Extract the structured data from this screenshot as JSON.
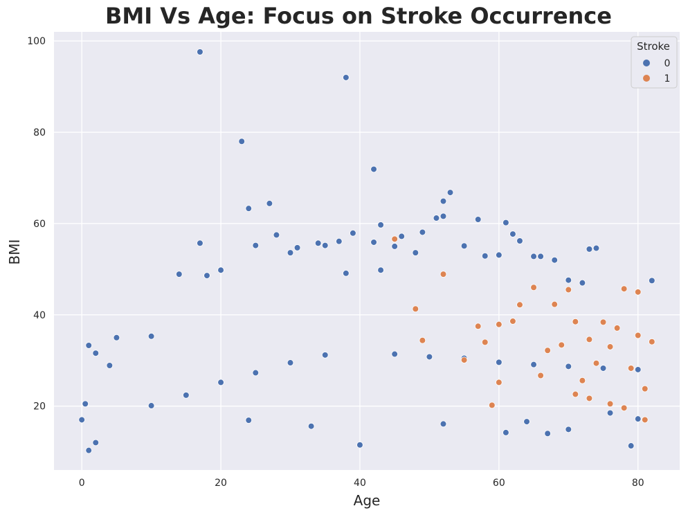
{
  "chart_data": {
    "type": "scatter",
    "title": "BMI Vs Age: Focus on Stroke Occurrence",
    "xlabel": "Age",
    "ylabel": "BMI",
    "xlim": [
      -4,
      86
    ],
    "ylim": [
      6,
      102
    ],
    "xticks": [
      0,
      20,
      40,
      60,
      80
    ],
    "yticks": [
      20,
      40,
      60,
      80,
      100
    ],
    "grid": true,
    "legend": {
      "title": "Stroke",
      "placement": "top-right",
      "entries": [
        {
          "label": "0",
          "color": "#4c72b0"
        },
        {
          "label": "1",
          "color": "#dd8452"
        }
      ]
    },
    "series": [
      {
        "name": "0",
        "color": "#4c72b0",
        "points": [
          [
            17,
            97.6
          ],
          [
            38,
            92
          ],
          [
            23,
            78
          ],
          [
            42,
            71.9
          ],
          [
            53,
            66.8
          ],
          [
            52,
            64.9
          ],
          [
            27,
            64.4
          ],
          [
            24,
            63.3
          ],
          [
            52,
            61.6
          ],
          [
            51,
            61.2
          ],
          [
            57,
            60.9
          ],
          [
            61,
            60.2
          ],
          [
            43,
            59.7
          ],
          [
            62,
            57.7
          ],
          [
            63,
            56.2
          ],
          [
            49,
            58.1
          ],
          [
            39,
            57.9
          ],
          [
            28,
            57.5
          ],
          [
            46,
            57.2
          ],
          [
            37,
            56.1
          ],
          [
            17,
            55.7
          ],
          [
            34,
            55.7
          ],
          [
            25,
            55.2
          ],
          [
            55,
            55.1
          ],
          [
            45,
            55
          ],
          [
            42,
            55.9
          ],
          [
            73,
            54.4
          ],
          [
            74,
            54.6
          ],
          [
            31,
            54.7
          ],
          [
            30,
            53.6
          ],
          [
            35,
            55.2
          ],
          [
            60,
            53.1
          ],
          [
            58,
            52.9
          ],
          [
            48,
            53.6
          ],
          [
            65,
            52.8
          ],
          [
            66,
            52.8
          ],
          [
            68,
            52
          ],
          [
            20,
            49.8
          ],
          [
            14,
            48.9
          ],
          [
            18,
            48.6
          ],
          [
            38,
            49.1
          ],
          [
            43,
            49.8
          ],
          [
            82,
            47.5
          ],
          [
            72,
            47
          ],
          [
            70,
            47.6
          ],
          [
            10,
            35.3
          ],
          [
            5,
            35
          ],
          [
            1,
            33.3
          ],
          [
            2,
            31.6
          ],
          [
            4,
            28.9
          ],
          [
            0,
            17
          ],
          [
            0.5,
            20.5
          ],
          [
            1,
            10.3
          ],
          [
            2,
            12
          ],
          [
            40,
            11.5
          ],
          [
            79,
            11.3
          ],
          [
            61,
            14.2
          ],
          [
            67,
            14
          ],
          [
            70,
            14.9
          ],
          [
            33,
            15.6
          ],
          [
            52,
            16.1
          ],
          [
            64,
            16.6
          ],
          [
            80,
            17.2
          ],
          [
            24,
            16.9
          ],
          [
            76,
            18.5
          ],
          [
            10,
            20.1
          ],
          [
            15,
            22.4
          ],
          [
            20,
            25.2
          ],
          [
            25,
            27.3
          ],
          [
            30,
            29.5
          ],
          [
            35,
            31.2
          ],
          [
            45,
            31.4
          ],
          [
            50,
            30.8
          ],
          [
            55,
            30.5
          ],
          [
            60,
            29.6
          ],
          [
            65,
            29.1
          ],
          [
            70,
            28.7
          ],
          [
            75,
            28.3
          ],
          [
            80,
            28
          ]
        ]
      },
      {
        "name": "1",
        "color": "#dd8452",
        "points": [
          [
            45,
            56.6
          ],
          [
            52,
            48.9
          ],
          [
            65,
            46
          ],
          [
            70,
            45.5
          ],
          [
            78,
            45.7
          ],
          [
            80,
            45
          ],
          [
            63,
            42.2
          ],
          [
            68,
            42.3
          ],
          [
            75,
            38.4
          ],
          [
            71,
            38.5
          ],
          [
            60,
            37.9
          ],
          [
            57,
            37.5
          ],
          [
            73,
            34.6
          ],
          [
            76,
            33
          ],
          [
            82,
            34.1
          ],
          [
            69,
            33.4
          ],
          [
            80,
            35.5
          ],
          [
            55,
            30.1
          ],
          [
            67,
            32.2
          ],
          [
            59,
            20.2
          ],
          [
            76,
            20.5
          ],
          [
            78,
            19.6
          ],
          [
            81,
            17
          ],
          [
            74,
            29.4
          ],
          [
            60,
            25.2
          ],
          [
            66,
            26.7
          ],
          [
            71,
            22.6
          ],
          [
            79,
            28.3
          ],
          [
            58,
            34
          ],
          [
            49,
            34.4
          ],
          [
            81,
            23.8
          ],
          [
            73,
            21.7
          ],
          [
            48,
            41.3
          ],
          [
            62,
            38.6
          ],
          [
            72,
            25.6
          ],
          [
            77,
            37.1
          ]
        ]
      }
    ]
  }
}
